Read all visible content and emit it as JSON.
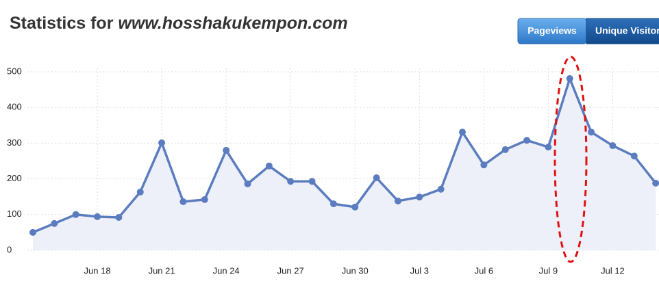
{
  "chart_data": {
    "type": "line",
    "title": "Statistics for",
    "site": "www.hosshakukempon.com",
    "buttons": [
      "Pageviews",
      "Unique Visitors"
    ],
    "categories": [
      null,
      null,
      null,
      "Jun 18",
      null,
      null,
      "Jun 21",
      null,
      null,
      "Jun 24",
      null,
      null,
      "Jun 27",
      null,
      null,
      "Jun 30",
      null,
      null,
      "Jul 3",
      null,
      null,
      "Jul 6",
      null,
      null,
      "Jul 9",
      null,
      null,
      "Jul 12",
      null,
      null
    ],
    "values": [
      50,
      75,
      100,
      94,
      92,
      163,
      301,
      136,
      142,
      280,
      186,
      236,
      193,
      193,
      130,
      121,
      203,
      138,
      149,
      171,
      331,
      239,
      282,
      308,
      289,
      481,
      331,
      293,
      264,
      188
    ],
    "color": "#5b7dbf",
    "area_color": "#eef0f9",
    "ylim": [
      0,
      500
    ],
    "yticks": [
      0,
      100,
      200,
      300,
      400,
      500
    ],
    "grid": true
  }
}
